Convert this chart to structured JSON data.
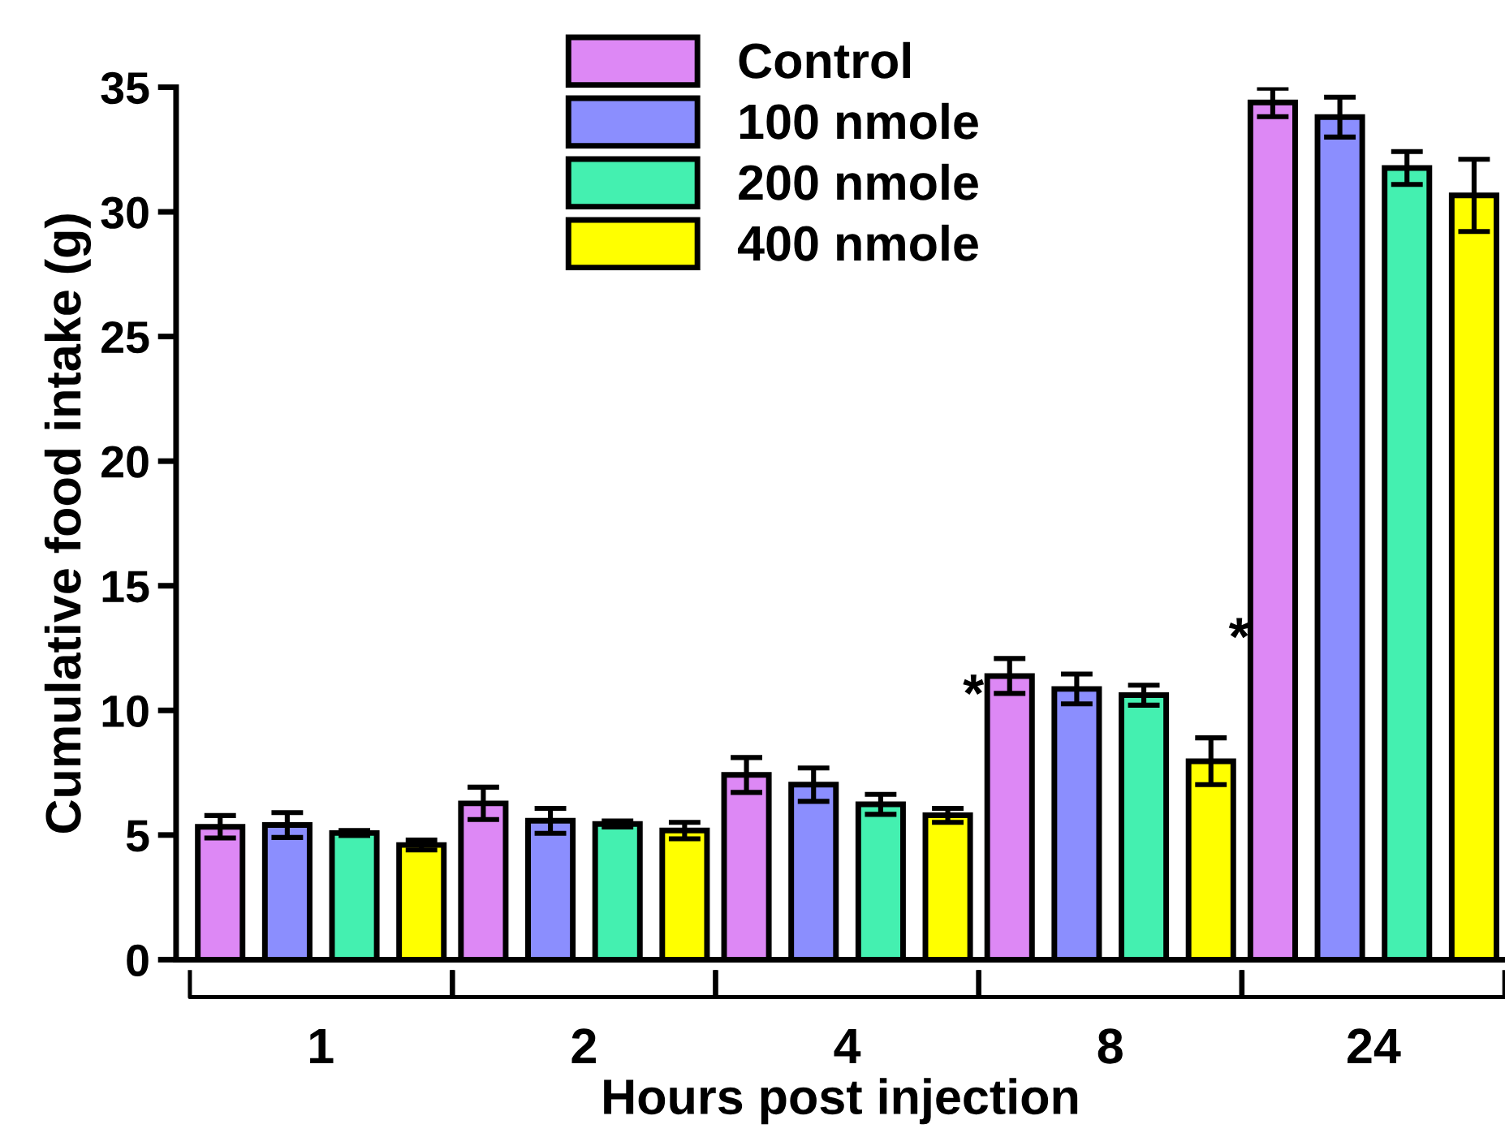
{
  "chart_data": {
    "type": "bar",
    "xlabel": "Hours post injection",
    "ylabel": "Cumulative food intake (g)",
    "categories": [
      "1",
      "2",
      "4",
      "8",
      "24"
    ],
    "series": [
      {
        "name": "Control",
        "color": "#dd88f5",
        "values": [
          5.33,
          6.27,
          7.41,
          11.38,
          34.39
        ],
        "errors": [
          0.45,
          0.65,
          0.7,
          0.7,
          0.57
        ]
      },
      {
        "name": "100 nmole",
        "color": "#8b8efe",
        "values": [
          5.4,
          5.57,
          7.02,
          10.86,
          33.8
        ],
        "errors": [
          0.5,
          0.5,
          0.67,
          0.6,
          0.8
        ]
      },
      {
        "name": "200 nmole",
        "color": "#44f0b0",
        "values": [
          5.08,
          5.44,
          6.23,
          10.61,
          31.76
        ],
        "errors": [
          0.1,
          0.12,
          0.4,
          0.4,
          0.66
        ]
      },
      {
        "name": "400 nmole",
        "color": "#ffff00",
        "values": [
          4.6,
          5.18,
          5.79,
          7.96,
          30.66
        ],
        "errors": [
          0.2,
          0.33,
          0.28,
          0.94,
          1.45
        ]
      }
    ],
    "ylim": [
      0,
      35
    ],
    "yticks": [
      0,
      5,
      10,
      15,
      20,
      25,
      30,
      35
    ],
    "grid": false,
    "legend": "top",
    "annotations": [
      "*",
      "*"
    ]
  }
}
